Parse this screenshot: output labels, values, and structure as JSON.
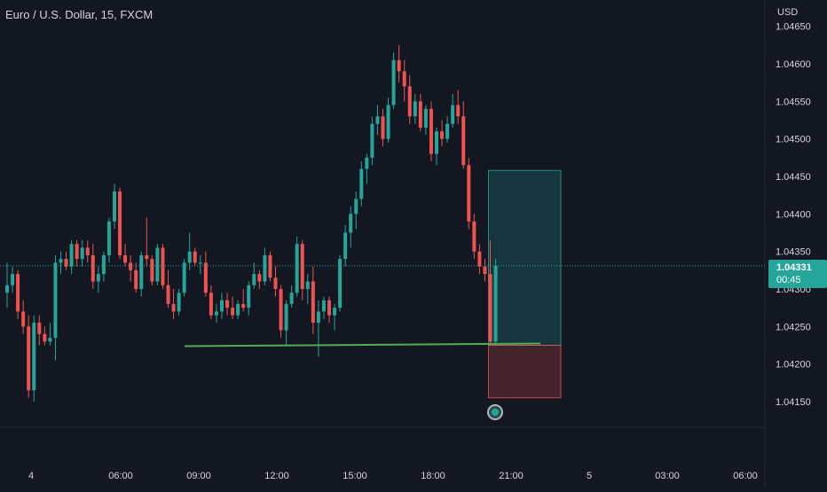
{
  "header": {
    "symbol_title": "Euro / U.S. Dollar, 15, FXCM",
    "currency": "USD"
  },
  "price_tag": {
    "price": "1.04331",
    "countdown": "00:45"
  },
  "colors": {
    "background": "#131722",
    "up_candle": "#26a69a",
    "down_candle": "#ef5350",
    "profit_zone": "#26a69a",
    "loss_zone": "#ef5350",
    "support_line": "#4caf50",
    "text": "#d1d4dc"
  },
  "chart_data": {
    "type": "candlestick",
    "y_axis": {
      "ticks": [
        "1.04150",
        "1.04200",
        "1.04250",
        "1.04300",
        "1.04350",
        "1.04400",
        "1.04450",
        "1.04500",
        "1.04550",
        "1.04600",
        "1.04650"
      ],
      "range": [
        1.0409,
        1.0465
      ]
    },
    "x_axis": {
      "ticks": [
        {
          "label": "4",
          "hour": -21.5
        },
        {
          "label": "06:00",
          "hour": 6
        },
        {
          "label": "09:00",
          "hour": 9
        },
        {
          "label": "12:00",
          "hour": 12
        },
        {
          "label": "15:00",
          "hour": 15
        },
        {
          "label": "18:00",
          "hour": 18
        },
        {
          "label": "21:00",
          "hour": 21
        },
        {
          "label": "5",
          "hour": 24
        },
        {
          "label": "03:00",
          "hour": 27
        },
        {
          "label": "06:00",
          "hour": 30
        }
      ]
    },
    "candles": [
      [
        1.04295,
        1.04335,
        1.04275,
        1.04305
      ],
      [
        1.04305,
        1.0433,
        1.04295,
        1.0432
      ],
      [
        1.0432,
        1.04325,
        1.0426,
        1.0427
      ],
      [
        1.0427,
        1.04285,
        1.0424,
        1.0425
      ],
      [
        1.0425,
        1.04265,
        1.04155,
        1.04165
      ],
      [
        1.04165,
        1.04265,
        1.0415,
        1.04255
      ],
      [
        1.04255,
        1.04265,
        1.04225,
        1.0424
      ],
      [
        1.0424,
        1.0425,
        1.04225,
        1.0423
      ],
      [
        1.0423,
        1.04255,
        1.04225,
        1.04235
      ],
      [
        1.04235,
        1.04345,
        1.04205,
        1.04335
      ],
      [
        1.04335,
        1.0435,
        1.0432,
        1.0434
      ],
      [
        1.0434,
        1.0435,
        1.04325,
        1.0433
      ],
      [
        1.0433,
        1.04365,
        1.0432,
        1.0436
      ],
      [
        1.0436,
        1.04365,
        1.0433,
        1.0434
      ],
      [
        1.0434,
        1.04365,
        1.0433,
        1.04355
      ],
      [
        1.04355,
        1.04365,
        1.04335,
        1.04345
      ],
      [
        1.04345,
        1.0436,
        1.043,
        1.0431
      ],
      [
        1.0431,
        1.0433,
        1.04295,
        1.0432
      ],
      [
        1.0432,
        1.0435,
        1.0431,
        1.04345
      ],
      [
        1.04345,
        1.04395,
        1.04335,
        1.0439
      ],
      [
        1.0439,
        1.0444,
        1.0438,
        1.0443
      ],
      [
        1.0443,
        1.04435,
        1.0434,
        1.04345
      ],
      [
        1.04345,
        1.0436,
        1.0433,
        1.04335
      ],
      [
        1.04335,
        1.04345,
        1.0431,
        1.04325
      ],
      [
        1.04325,
        1.04335,
        1.04295,
        1.043
      ],
      [
        1.043,
        1.0435,
        1.0429,
        1.04345
      ],
      [
        1.04345,
        1.04395,
        1.0433,
        1.0434
      ],
      [
        1.0434,
        1.04345,
        1.04305,
        1.0431
      ],
      [
        1.0431,
        1.0436,
        1.04305,
        1.04355
      ],
      [
        1.04355,
        1.0436,
        1.043,
        1.04305
      ],
      [
        1.04305,
        1.04325,
        1.04275,
        1.0428
      ],
      [
        1.0428,
        1.043,
        1.0426,
        1.0427
      ],
      [
        1.0427,
        1.043,
        1.04265,
        1.04295
      ],
      [
        1.04295,
        1.0434,
        1.0429,
        1.04335
      ],
      [
        1.04335,
        1.04375,
        1.04325,
        1.0435
      ],
      [
        1.0435,
        1.04355,
        1.0433,
        1.04335
      ],
      [
        1.04335,
        1.04345,
        1.0432,
        1.04335
      ],
      [
        1.04335,
        1.0435,
        1.0429,
        1.04295
      ],
      [
        1.04295,
        1.04305,
        1.0426,
        1.04265
      ],
      [
        1.04265,
        1.0428,
        1.04255,
        1.0427
      ],
      [
        1.0427,
        1.04295,
        1.0426,
        1.04285
      ],
      [
        1.04285,
        1.04295,
        1.04265,
        1.04275
      ],
      [
        1.04275,
        1.0429,
        1.0426,
        1.04265
      ],
      [
        1.04265,
        1.04285,
        1.0426,
        1.0428
      ],
      [
        1.0428,
        1.043,
        1.0427,
        1.04275
      ],
      [
        1.04275,
        1.0431,
        1.04265,
        1.04305
      ],
      [
        1.04305,
        1.04335,
        1.043,
        1.0432
      ],
      [
        1.0432,
        1.04325,
        1.043,
        1.0431
      ],
      [
        1.0431,
        1.04355,
        1.04305,
        1.04345
      ],
      [
        1.04345,
        1.0435,
        1.0431,
        1.04315
      ],
      [
        1.04315,
        1.0433,
        1.0429,
        1.043
      ],
      [
        1.043,
        1.04305,
        1.04235,
        1.04245
      ],
      [
        1.04245,
        1.04285,
        1.04225,
        1.0428
      ],
      [
        1.0428,
        1.04305,
        1.04275,
        1.04295
      ],
      [
        1.04295,
        1.0437,
        1.0429,
        1.0436
      ],
      [
        1.0436,
        1.04365,
        1.04285,
        1.043
      ],
      [
        1.043,
        1.0432,
        1.0428,
        1.0431
      ],
      [
        1.0431,
        1.0433,
        1.0424,
        1.04255
      ],
      [
        1.04255,
        1.04285,
        1.0421,
        1.0427
      ],
      [
        1.0427,
        1.0429,
        1.0426,
        1.04285
      ],
      [
        1.04285,
        1.0429,
        1.04255,
        1.04265
      ],
      [
        1.04265,
        1.0428,
        1.04245,
        1.04275
      ],
      [
        1.04275,
        1.04345,
        1.0427,
        1.0434
      ],
      [
        1.0434,
        1.04385,
        1.0433,
        1.04375
      ],
      [
        1.04375,
        1.0441,
        1.04355,
        1.044
      ],
      [
        1.044,
        1.0443,
        1.0438,
        1.0442
      ],
      [
        1.0442,
        1.0447,
        1.0441,
        1.0446
      ],
      [
        1.0446,
        1.0448,
        1.0444,
        1.04475
      ],
      [
        1.04475,
        1.0453,
        1.04465,
        1.0452
      ],
      [
        1.0452,
        1.04545,
        1.04505,
        1.0453
      ],
      [
        1.0453,
        1.0454,
        1.0449,
        1.045
      ],
      [
        1.045,
        1.04555,
        1.04495,
        1.04545
      ],
      [
        1.04545,
        1.04615,
        1.0454,
        1.04605
      ],
      [
        1.04605,
        1.04625,
        1.04575,
        1.0459
      ],
      [
        1.0459,
        1.04605,
        1.0455,
        1.0457
      ],
      [
        1.0457,
        1.04585,
        1.0452,
        1.0453
      ],
      [
        1.0453,
        1.0456,
        1.0452,
        1.0455
      ],
      [
        1.0455,
        1.0456,
        1.0451,
        1.04515
      ],
      [
        1.04515,
        1.04545,
        1.04505,
        1.0454
      ],
      [
        1.0454,
        1.0455,
        1.0447,
        1.0448
      ],
      [
        1.0448,
        1.04515,
        1.04465,
        1.0451
      ],
      [
        1.0451,
        1.04525,
        1.0449,
        1.045
      ],
      [
        1.045,
        1.0453,
        1.04495,
        1.0452
      ],
      [
        1.0452,
        1.0456,
        1.04515,
        1.04545
      ],
      [
        1.04545,
        1.04565,
        1.0452,
        1.0453
      ],
      [
        1.0453,
        1.0455,
        1.0446,
        1.04465
      ],
      [
        1.04465,
        1.04475,
        1.0438,
        1.0439
      ],
      [
        1.0439,
        1.044,
        1.0434,
        1.0435
      ],
      [
        1.0435,
        1.0436,
        1.0432,
        1.0433
      ],
      [
        1.0433,
        1.0434,
        1.0431,
        1.0432
      ],
      [
        1.0432,
        1.04365,
        1.04225,
        1.0423
      ],
      [
        1.0423,
        1.0434,
        1.04225,
        1.04331
      ]
    ],
    "support_line": {
      "value": 1.04225
    },
    "position_tool": {
      "entry": 1.04225,
      "target": 1.04458,
      "stop": 1.04155,
      "start_index": 90,
      "end_index": 98
    },
    "current_price": 1.04331,
    "current_price_label": "1.04331",
    "countdown": "00:45",
    "grid": false
  }
}
